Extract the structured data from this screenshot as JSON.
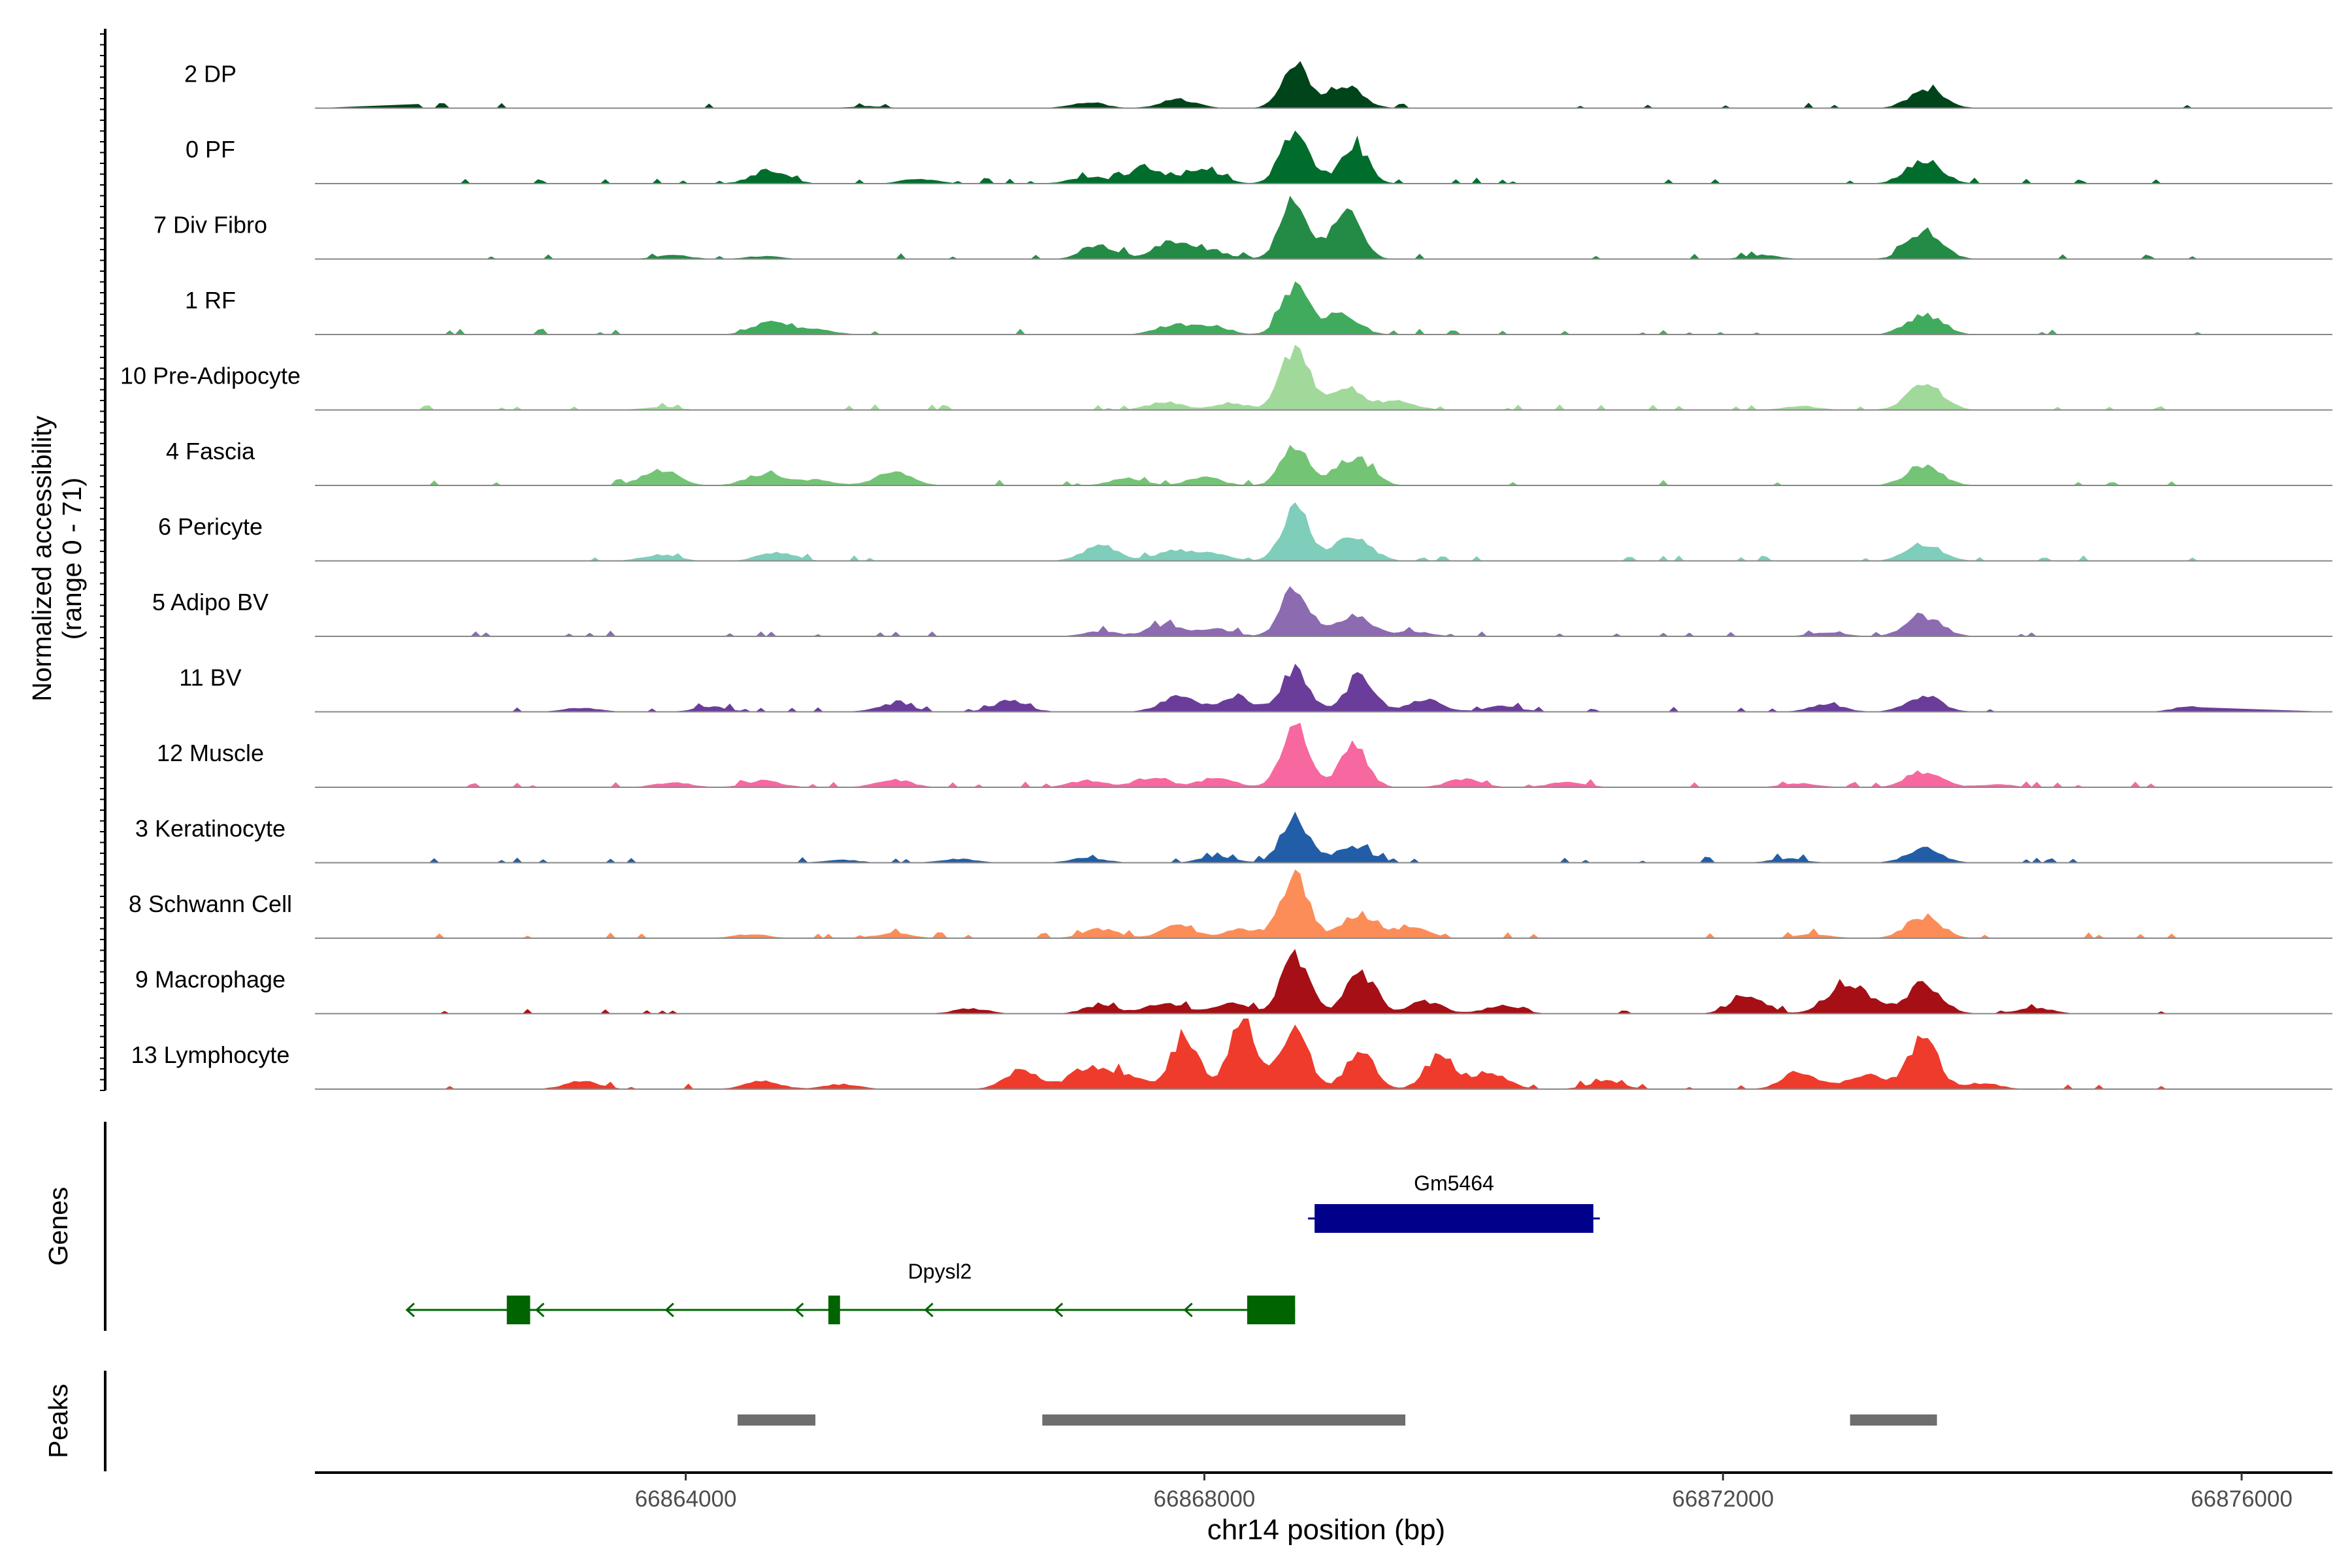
{
  "chart_data": {
    "type": "area",
    "title": "",
    "xlabel": "chr14 position (bp)",
    "ylabel_line1": "Normalized accessibility",
    "ylabel_line2": "(range 0 - 71)",
    "ylim": [
      0,
      71
    ],
    "xlim": [
      66861140,
      66876700
    ],
    "xticks": [
      66864000,
      66868000,
      66872000,
      66876000
    ],
    "xtick_labels": [
      "66864000",
      "66868000",
      "66872000",
      "66876000"
    ],
    "grid": false,
    "legend": "none",
    "tracks": [
      {
        "name": "2 DP",
        "color": "#00441b",
        "peaks": [
          [
            66868700,
            40
          ],
          [
            66869080,
            24
          ],
          [
            66867800,
            9
          ],
          [
            66867100,
            6
          ],
          [
            66873570,
            18
          ],
          [
            66865400,
            2
          ]
        ]
      },
      {
        "name": "0 PF",
        "color": "#006d2c",
        "peaks": [
          [
            66868700,
            55
          ],
          [
            66869150,
            38
          ],
          [
            66867550,
            17
          ],
          [
            66868000,
            14
          ],
          [
            66867100,
            7
          ],
          [
            66864650,
            14
          ],
          [
            66865800,
            5
          ],
          [
            66873550,
            24
          ]
        ]
      },
      {
        "name": "7 Div Fibro",
        "color": "#238b45",
        "peaks": [
          [
            66868700,
            62
          ],
          [
            66869100,
            57
          ],
          [
            66867750,
            18
          ],
          [
            66867200,
            13
          ],
          [
            66868050,
            8
          ],
          [
            66863900,
            4
          ],
          [
            66864600,
            3
          ],
          [
            66873560,
            26
          ],
          [
            66872300,
            4
          ]
        ]
      },
      {
        "name": "1 RF",
        "color": "#41ab5d",
        "peaks": [
          [
            66868700,
            50
          ],
          [
            66869050,
            20
          ],
          [
            66867750,
            9
          ],
          [
            66868050,
            9
          ],
          [
            66864650,
            12
          ],
          [
            66865000,
            6
          ],
          [
            66873550,
            20
          ]
        ]
      },
      {
        "name": "10 Pre-Adipocyte",
        "color": "#a1d99b",
        "peaks": [
          [
            66868700,
            64
          ],
          [
            66869100,
            22
          ],
          [
            66869500,
            9
          ],
          [
            66867700,
            8
          ],
          [
            66868200,
            7
          ],
          [
            66863800,
            3
          ],
          [
            66873560,
            26
          ],
          [
            66872600,
            4
          ]
        ]
      },
      {
        "name": "4 Fascia",
        "color": "#74c476",
        "peaks": [
          [
            66868700,
            38
          ],
          [
            66869150,
            29
          ],
          [
            66863800,
            16
          ],
          [
            66864600,
            12
          ],
          [
            66865000,
            6
          ],
          [
            66865600,
            14
          ],
          [
            66867400,
            7
          ],
          [
            66868000,
            8
          ],
          [
            66873550,
            20
          ]
        ]
      },
      {
        "name": "6 Pericyte",
        "color": "#7fcdbb",
        "peaks": [
          [
            66868700,
            53
          ],
          [
            66869150,
            24
          ],
          [
            66867200,
            15
          ],
          [
            66867750,
            10
          ],
          [
            66868050,
            8
          ],
          [
            66864700,
            9
          ],
          [
            66863800,
            6
          ],
          [
            66873550,
            17
          ],
          [
            66876000,
            3
          ]
        ]
      },
      {
        "name": "5 Adipo BV",
        "color": "#8c6bb1",
        "peaks": [
          [
            66868700,
            48
          ],
          [
            66869150,
            20
          ],
          [
            66867700,
            12
          ],
          [
            66868100,
            7
          ],
          [
            66869600,
            5
          ],
          [
            66867200,
            5
          ],
          [
            66873550,
            20
          ],
          [
            66872800,
            4
          ]
        ]
      },
      {
        "name": "11 BV",
        "color": "#6a3d9a",
        "peaks": [
          [
            66868700,
            42
          ],
          [
            66869200,
            38
          ],
          [
            66868250,
            14
          ],
          [
            66867800,
            16
          ],
          [
            66866500,
            11
          ],
          [
            66865600,
            8
          ],
          [
            66869700,
            12
          ],
          [
            66870300,
            6
          ],
          [
            66863200,
            4
          ],
          [
            66864200,
            5
          ],
          [
            66873550,
            16
          ],
          [
            66872800,
            7
          ],
          [
            66875600,
            5
          ]
        ]
      },
      {
        "name": "12 Muscle",
        "color": "#f768a1",
        "peaks": [
          [
            66868700,
            58
          ],
          [
            66869150,
            42
          ],
          [
            66868100,
            10
          ],
          [
            66867600,
            10
          ],
          [
            66867100,
            7
          ],
          [
            66865600,
            8
          ],
          [
            66864600,
            7
          ],
          [
            66863900,
            5
          ],
          [
            66870000,
            8
          ],
          [
            66870800,
            6
          ],
          [
            66873550,
            16
          ],
          [
            66872600,
            4
          ],
          [
            66874100,
            3
          ]
        ]
      },
      {
        "name": "3 Keratinocyte",
        "color": "#225ea8",
        "peaks": [
          [
            66868700,
            45
          ],
          [
            66869150,
            17
          ],
          [
            66868100,
            6
          ],
          [
            66867100,
            5
          ],
          [
            66866100,
            4
          ],
          [
            66865200,
            3
          ],
          [
            66873550,
            14
          ],
          [
            66872500,
            4
          ]
        ]
      },
      {
        "name": "8 Schwann Cell",
        "color": "#fc8d59",
        "peaks": [
          [
            66868700,
            62
          ],
          [
            66869200,
            24
          ],
          [
            66869600,
            10
          ],
          [
            66867800,
            12
          ],
          [
            66867200,
            9
          ],
          [
            66868300,
            9
          ],
          [
            66865600,
            5
          ],
          [
            66864500,
            4
          ],
          [
            66873550,
            22
          ],
          [
            66872700,
            4
          ]
        ]
      },
      {
        "name": "9 Macrophage",
        "color": "#a50f15",
        "peaks": [
          [
            66868700,
            58
          ],
          [
            66869200,
            40
          ],
          [
            66868200,
            10
          ],
          [
            66867700,
            11
          ],
          [
            66867200,
            8
          ],
          [
            66869700,
            12
          ],
          [
            66870300,
            8
          ],
          [
            66866200,
            5
          ],
          [
            66872200,
            17
          ],
          [
            66872900,
            23
          ],
          [
            66873550,
            30
          ],
          [
            66873100,
            14
          ],
          [
            66874400,
            6
          ]
        ]
      },
      {
        "name": "13 Lymphocyte",
        "color": "#ef3b2c",
        "peaks": [
          [
            66868300,
            71
          ],
          [
            66868700,
            62
          ],
          [
            66867850,
            55
          ],
          [
            66869200,
            40
          ],
          [
            66866600,
            18
          ],
          [
            66867100,
            22
          ],
          [
            66867400,
            14
          ],
          [
            66869800,
            32
          ],
          [
            66870200,
            18
          ],
          [
            66863200,
            8
          ],
          [
            66864600,
            8
          ],
          [
            66865200,
            5
          ],
          [
            66873550,
            58
          ],
          [
            66872600,
            18
          ],
          [
            66873100,
            14
          ],
          [
            66871100,
            8
          ],
          [
            66874000,
            6
          ]
        ]
      }
    ],
    "genes": [
      {
        "name": "Gm5464",
        "start": 66868850,
        "end": 66871000,
        "strand": "+",
        "color": "#00008b"
      },
      {
        "name": "Dpysl2",
        "start": 66861850,
        "end": 66868700,
        "strand": "-",
        "color": "#006400",
        "exons": [
          [
            66862620,
            66862800
          ],
          [
            66865100,
            66865190
          ],
          [
            66868330,
            66868700
          ]
        ]
      }
    ],
    "peak_regions": [
      [
        66864400,
        66865000
      ],
      [
        66866750,
        66869550
      ],
      [
        66872980,
        66873650
      ]
    ],
    "peaks_color": "#6e6e6e",
    "genes_label": "Genes",
    "peaks_label": "Peaks"
  }
}
